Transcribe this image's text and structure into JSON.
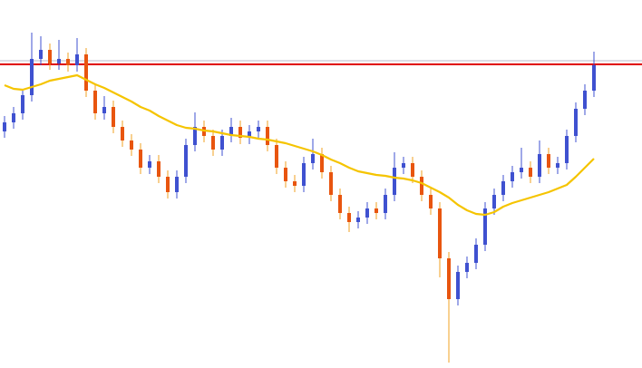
{
  "chart_data": {
    "type": "candlestick",
    "ylim": [
      0,
      406
    ],
    "up_color": "#3f51d0",
    "down_color": "#e8550f",
    "down_wick_color": "#f0a020",
    "open": [
      261,
      271,
      281,
      301,
      341,
      351,
      336,
      341,
      334,
      346,
      306,
      281,
      288,
      266,
      251,
      241,
      221,
      228,
      211,
      194,
      211,
      246,
      266,
      256,
      241,
      256,
      266,
      254,
      261,
      266,
      246,
      221,
      206,
      201,
      226,
      236,
      216,
      191,
      171,
      161,
      166,
      176,
      171,
      191,
      221,
      226,
      211,
      191,
      176,
      121,
      76,
      106,
      116,
      136,
      176,
      191,
      206,
      216,
      221,
      211,
      236,
      221,
      226,
      256,
      286,
      306
    ],
    "high": [
      278,
      288,
      308,
      370,
      366,
      358,
      362,
      348,
      364,
      353,
      313,
      300,
      295,
      273,
      258,
      248,
      235,
      235,
      218,
      218,
      253,
      282,
      273,
      263,
      263,
      276,
      273,
      268,
      273,
      273,
      253,
      228,
      213,
      233,
      253,
      243,
      223,
      198,
      178,
      173,
      183,
      183,
      198,
      238,
      233,
      233,
      218,
      198,
      183,
      128,
      113,
      123,
      143,
      183,
      198,
      213,
      223,
      243,
      228,
      251,
      243,
      233,
      263,
      293,
      313,
      349
    ],
    "low": [
      254,
      264,
      274,
      294,
      334,
      329,
      329,
      327,
      327,
      299,
      274,
      274,
      259,
      244,
      234,
      214,
      214,
      204,
      187,
      187,
      204,
      239,
      249,
      234,
      234,
      249,
      247,
      247,
      254,
      239,
      214,
      199,
      194,
      194,
      219,
      209,
      184,
      164,
      150,
      154,
      159,
      164,
      164,
      184,
      214,
      204,
      184,
      169,
      100,
      6,
      69,
      99,
      109,
      129,
      169,
      184,
      199,
      209,
      204,
      204,
      214,
      214,
      219,
      249,
      279,
      299
    ],
    "close": [
      271,
      281,
      301,
      341,
      351,
      336,
      341,
      334,
      346,
      306,
      281,
      288,
      266,
      251,
      241,
      221,
      228,
      211,
      194,
      211,
      246,
      266,
      256,
      241,
      256,
      266,
      254,
      261,
      266,
      246,
      221,
      206,
      201,
      226,
      236,
      216,
      191,
      171,
      161,
      166,
      176,
      171,
      191,
      221,
      226,
      211,
      191,
      176,
      121,
      76,
      106,
      116,
      136,
      176,
      191,
      206,
      216,
      221,
      211,
      236,
      221,
      226,
      256,
      286,
      306,
      334
    ],
    "ma": {
      "color": "#f5c400",
      "values": [
        312,
        308,
        307,
        310,
        313,
        317,
        319,
        321,
        323,
        318,
        313,
        309,
        304,
        299,
        294,
        288,
        284,
        278,
        273,
        268,
        265,
        264,
        262,
        261,
        259,
        257,
        256,
        255,
        253,
        252,
        250,
        248,
        245,
        242,
        239,
        235,
        230,
        226,
        221,
        217,
        215,
        213,
        212,
        210,
        209,
        207,
        204,
        199,
        194,
        188,
        180,
        174,
        170,
        169,
        172,
        178,
        182,
        185,
        188,
        191,
        194,
        198,
        202,
        211,
        221,
        231
      ]
    },
    "hlines": [
      {
        "value": 339,
        "color": "#b8b8c8"
      },
      {
        "value": 335,
        "color": "#e00000"
      }
    ]
  }
}
